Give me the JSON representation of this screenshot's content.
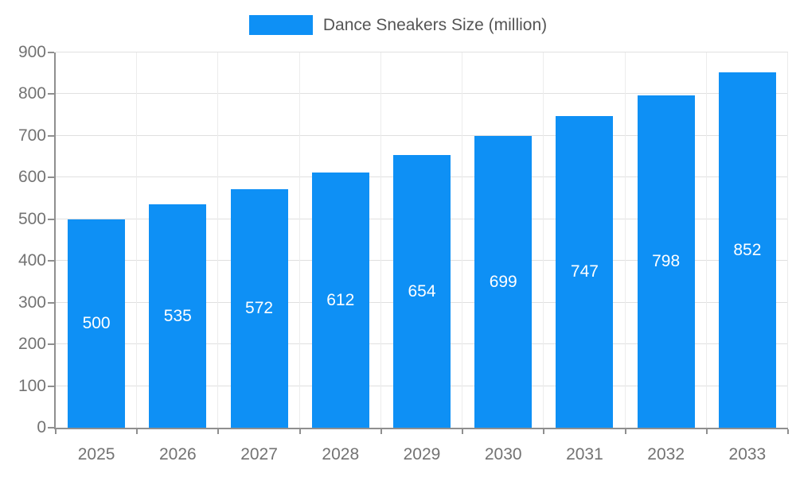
{
  "chart_data": {
    "type": "bar",
    "title": "Dance Sneakers Size (million)",
    "categories": [
      "2025",
      "2026",
      "2027",
      "2028",
      "2029",
      "2030",
      "2031",
      "2032",
      "2033"
    ],
    "values": [
      500,
      535,
      572,
      612,
      654,
      699,
      747,
      798,
      852
    ],
    "xlabel": "",
    "ylabel": "",
    "ylim": [
      0,
      900
    ],
    "ytick_step": 100,
    "grid": true,
    "legend_position": "top-center",
    "value_labels": "inside-center"
  },
  "colors": {
    "bar": "#0e90f5",
    "axis": "#8f8f8f",
    "gridline": "#e0e0e0",
    "tick_label": "#737373",
    "value_label": "#ffffff",
    "legend_label": "#555555",
    "background": "#ffffff"
  }
}
